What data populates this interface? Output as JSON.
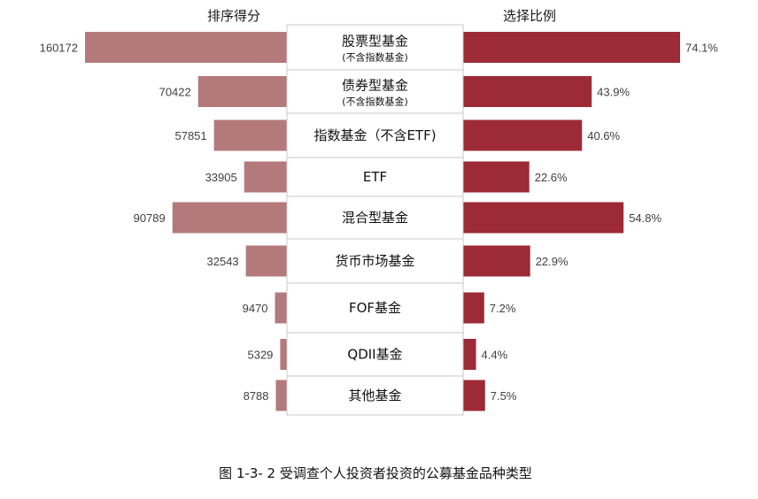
{
  "chart_data": {
    "type": "bar",
    "caption": "图 1-3- 2 受调查个人投资者投资的公募基金品种类型",
    "left_header": "排序得分",
    "right_header": "选择比例",
    "categories": [
      {
        "name": "股票型基金",
        "sub": "(不含指数基金)"
      },
      {
        "name": "债券型基金",
        "sub": "(不含指数基金)"
      },
      {
        "name": "指数基金（不含ETF)",
        "sub": ""
      },
      {
        "name": "ETF",
        "sub": ""
      },
      {
        "name": "混合型基金",
        "sub": ""
      },
      {
        "name": "货币市场基金",
        "sub": ""
      },
      {
        "name": "FOF基金",
        "sub": ""
      },
      {
        "name": "QDII基金",
        "sub": ""
      },
      {
        "name": "其他基金",
        "sub": ""
      }
    ],
    "series": [
      {
        "name": "排序得分",
        "values": [
          160172,
          70422,
          57851,
          33905,
          90789,
          32543,
          9470,
          5329,
          8788
        ],
        "labels": [
          "160172",
          "70422",
          "57851",
          "33905",
          "90789",
          "32543",
          "9470",
          "5329",
          "8788"
        ]
      },
      {
        "name": "选择比例",
        "values": [
          74.1,
          43.9,
          40.6,
          22.6,
          54.8,
          22.9,
          7.2,
          4.4,
          7.5
        ],
        "labels": [
          "74.1%",
          "43.9%",
          "40.6%",
          "22.6%",
          "54.8%",
          "22.9%",
          "7.2%",
          "4.4%",
          "7.5%"
        ]
      }
    ],
    "colors": {
      "left": "#b47a7b",
      "right": "#9c2b37",
      "box_border": "#c8c8c8"
    }
  }
}
